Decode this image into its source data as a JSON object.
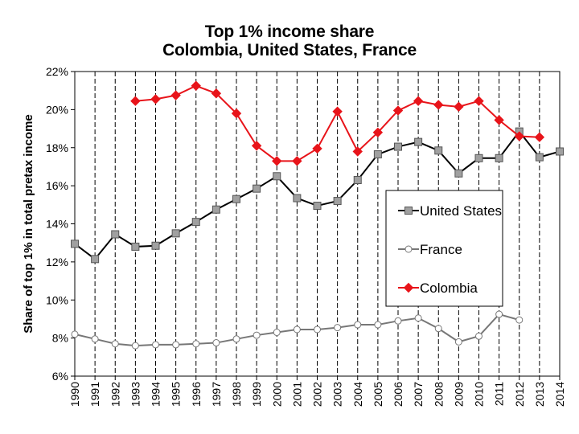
{
  "chart_data": {
    "type": "line",
    "title": "Top 1% income share",
    "subtitle": "Colombia, United States, France",
    "xlabel": "",
    "ylabel": "Share of top 1% in total pretax income",
    "ylim": [
      6,
      22
    ],
    "yticks": [
      6,
      8,
      10,
      12,
      14,
      16,
      18,
      20,
      22
    ],
    "ytick_labels": [
      "6%",
      "8%",
      "10%",
      "12%",
      "14%",
      "16%",
      "18%",
      "20%",
      "22%"
    ],
    "x": [
      1990,
      1991,
      1992,
      1993,
      1994,
      1995,
      1996,
      1997,
      1998,
      1999,
      2000,
      2001,
      2002,
      2003,
      2004,
      2005,
      2006,
      2007,
      2008,
      2009,
      2010,
      2011,
      2012,
      2013,
      2014
    ],
    "x_labels": [
      "1990",
      "1991",
      "1992",
      "1993",
      "1994",
      "1995",
      "1996",
      "1997",
      "1998",
      "1999",
      "2000",
      "2001",
      "2002",
      "2003",
      "2004",
      "2005",
      "2006",
      "2007",
      "2008",
      "2009",
      "2010",
      "2011",
      "2012",
      "2013",
      "2014"
    ],
    "grid": "vertical",
    "legend_position": "center-right",
    "series": [
      {
        "name": "United States",
        "color": "#000000",
        "marker": "square",
        "marker_fill": "#a0a0a0",
        "values": [
          12.95,
          12.15,
          13.45,
          12.8,
          12.85,
          13.5,
          14.1,
          14.75,
          15.3,
          15.85,
          16.5,
          15.35,
          14.95,
          15.2,
          16.3,
          17.65,
          18.05,
          18.3,
          17.85,
          16.65,
          17.45,
          17.45,
          18.85,
          17.5,
          17.8
        ]
      },
      {
        "name": "France",
        "color": "#777777",
        "marker": "circle",
        "marker_fill": "#ffffff",
        "values": [
          8.2,
          7.95,
          7.7,
          7.6,
          7.65,
          7.65,
          7.7,
          7.75,
          7.95,
          8.15,
          8.3,
          8.45,
          8.45,
          8.55,
          8.7,
          8.7,
          8.9,
          9.05,
          8.5,
          7.8,
          8.1,
          9.25,
          8.95,
          null,
          null
        ]
      },
      {
        "name": "Colombia",
        "color": "#e8141a",
        "marker": "diamond",
        "marker_fill": "#e8141a",
        "values": [
          null,
          null,
          null,
          20.45,
          20.55,
          20.75,
          21.25,
          20.85,
          19.8,
          18.1,
          17.3,
          17.3,
          17.95,
          19.9,
          17.8,
          18.8,
          19.95,
          20.45,
          20.25,
          20.15,
          20.45,
          19.45,
          18.6,
          18.55,
          null
        ]
      }
    ]
  }
}
